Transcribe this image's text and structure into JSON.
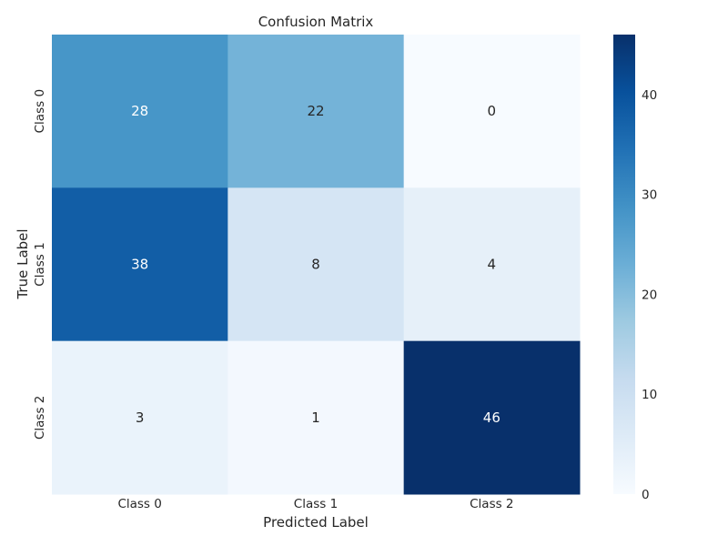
{
  "chart_data": {
    "type": "heatmap",
    "title": "Confusion Matrix",
    "xlabel": "Predicted Label",
    "ylabel": "True Label",
    "x_categories": [
      "Class 0",
      "Class 1",
      "Class 2"
    ],
    "y_categories": [
      "Class 0",
      "Class 1",
      "Class 2"
    ],
    "values": [
      [
        28,
        22,
        0
      ],
      [
        38,
        8,
        4
      ],
      [
        3,
        1,
        46
      ]
    ],
    "colormap": "Blues",
    "colorbar": {
      "range": [
        0,
        46
      ],
      "ticks": [
        0,
        10,
        20,
        30,
        40
      ]
    },
    "grid": false
  }
}
